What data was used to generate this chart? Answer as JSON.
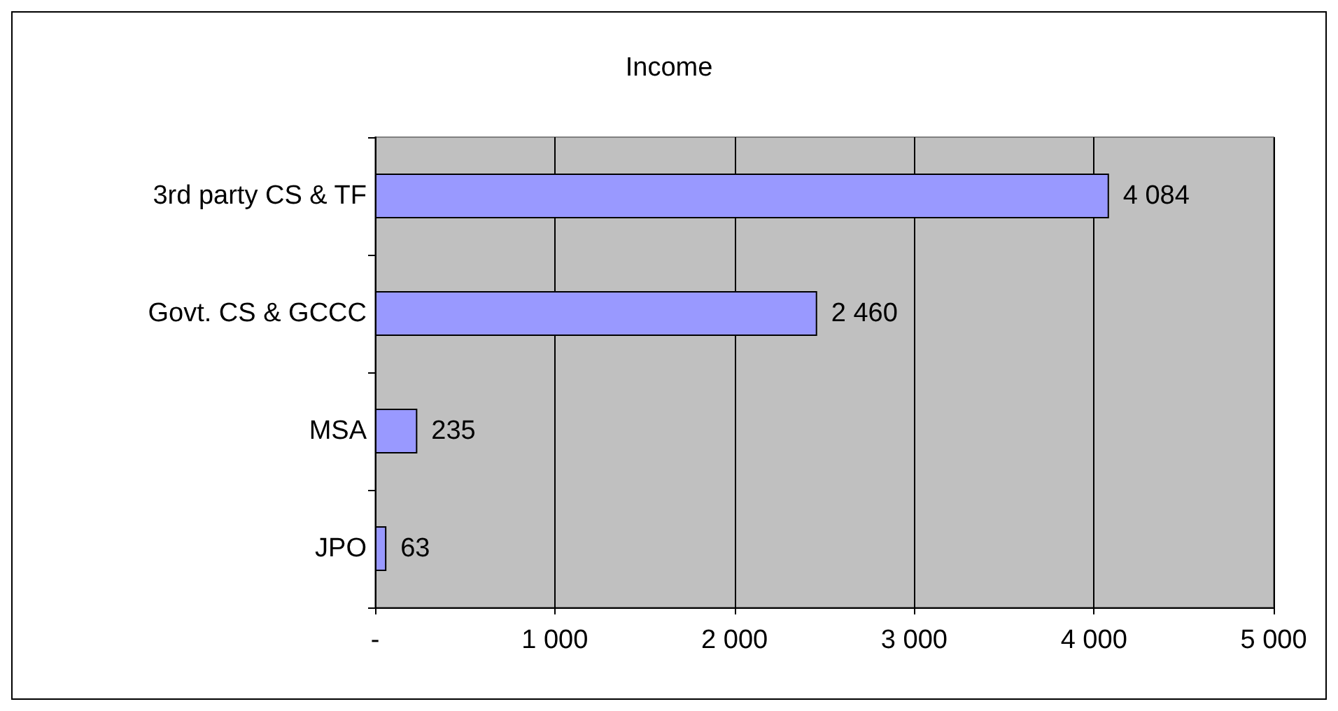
{
  "chart_data": {
    "type": "bar",
    "orientation": "horizontal",
    "title": "Income",
    "categories": [
      "3rd party CS & TF",
      "Govt. CS & GCCC",
      "MSA",
      "JPO"
    ],
    "values": [
      4084,
      2460,
      235,
      63
    ],
    "value_labels": [
      "4 084",
      "2 460",
      "235",
      "63"
    ],
    "color": "#9999ff",
    "xlim": [
      0,
      5000
    ],
    "xticks": [
      {
        "value": 0,
        "label": "-"
      },
      {
        "value": 1000,
        "label": "1 000"
      },
      {
        "value": 2000,
        "label": "2 000"
      },
      {
        "value": 3000,
        "label": "3 000"
      },
      {
        "value": 4000,
        "label": "4 000"
      },
      {
        "value": 5000,
        "label": "5 000"
      }
    ],
    "grid": "x"
  }
}
